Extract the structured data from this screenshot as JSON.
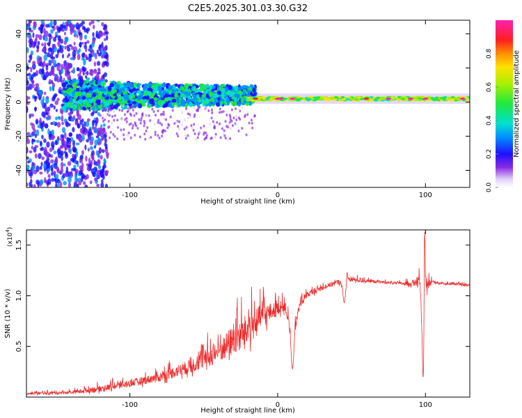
{
  "title": "C2E5.2025.301.03.30.G32",
  "chart_data": [
    {
      "type": "heatmap",
      "title": "C2E5.2025.301.03.30.G32",
      "xlabel": "Height of straight line (km)",
      "ylabel": "Frequency (Hz)",
      "xlim": [
        -170,
        130
      ],
      "ylim": [
        -50,
        48
      ],
      "x_ticks": [
        "-100",
        "0",
        "100"
      ],
      "x_tick_values": [
        -100,
        0,
        100
      ],
      "y_ticks": [
        "-40",
        "-20",
        "0",
        "20",
        "40"
      ],
      "y_tick_values": [
        -40,
        -20,
        0,
        20,
        40
      ],
      "colorbar": {
        "label": "Normalized spectral amplitude",
        "range": [
          0,
          1
        ],
        "ticks": [
          "0.0",
          "0.2",
          "0.4",
          "0.6",
          "0.8"
        ],
        "tick_values": [
          0,
          0.2,
          0.4,
          0.6,
          0.8
        ]
      },
      "description_values": {
        "ridge_frequency_hz": 2,
        "ridge_start_km": -20,
        "ridge_end_km": 130,
        "scatter_zone_km": [
          -170,
          -20
        ]
      }
    },
    {
      "type": "line",
      "xlabel": "Height of straight line (km)",
      "ylabel": "SNR (10 * v/v)",
      "yscale_label": "(x10",
      "yscale_exp": "4",
      "xlim": [
        -170,
        130
      ],
      "ylim": [
        0,
        1.65
      ],
      "x_ticks": [
        "-100",
        "0",
        "100"
      ],
      "x_tick_values": [
        -100,
        0,
        100
      ],
      "y_ticks": [
        "0.5",
        "1.0",
        "1.5"
      ],
      "y_tick_values": [
        0.5,
        1.0,
        1.5
      ],
      "series": [
        {
          "name": "SNR",
          "color": "#ee2a2a",
          "envelope_x": [
            -170,
            -140,
            -120,
            -100,
            -80,
            -60,
            -40,
            -30,
            -20,
            -10,
            0,
            5,
            10,
            15,
            20,
            30,
            40,
            50,
            60,
            70,
            80,
            90,
            95,
            100,
            105,
            110,
            120,
            130
          ],
          "envelope_y": [
            0.03,
            0.04,
            0.07,
            0.12,
            0.18,
            0.27,
            0.4,
            0.5,
            0.6,
            0.75,
            0.85,
            0.88,
            0.55,
            0.9,
            1.0,
            1.07,
            1.12,
            1.15,
            1.14,
            1.13,
            1.12,
            1.11,
            1.12,
            1.08,
            1.13,
            1.12,
            1.11,
            1.1
          ],
          "noise_amp_y": [
            0.02,
            0.03,
            0.06,
            0.07,
            0.09,
            0.14,
            0.22,
            0.3,
            0.33,
            0.25,
            0.12,
            0.1,
            0.12,
            0.08,
            0.06,
            0.05,
            0.05,
            0.05,
            0.03,
            0.03,
            0.02,
            0.05,
            0.1,
            0.15,
            0.03,
            0.02,
            0.02,
            0.02
          ],
          "dips": [
            {
              "x": 10,
              "y": 0.28
            },
            {
              "x": 45,
              "y": 0.93
            },
            {
              "x": 98.5,
              "y": 0.17
            }
          ],
          "peaks": [
            {
              "x": 99.5,
              "y": 1.65
            },
            {
              "x": 47,
              "y": 1.23
            }
          ]
        }
      ]
    }
  ]
}
